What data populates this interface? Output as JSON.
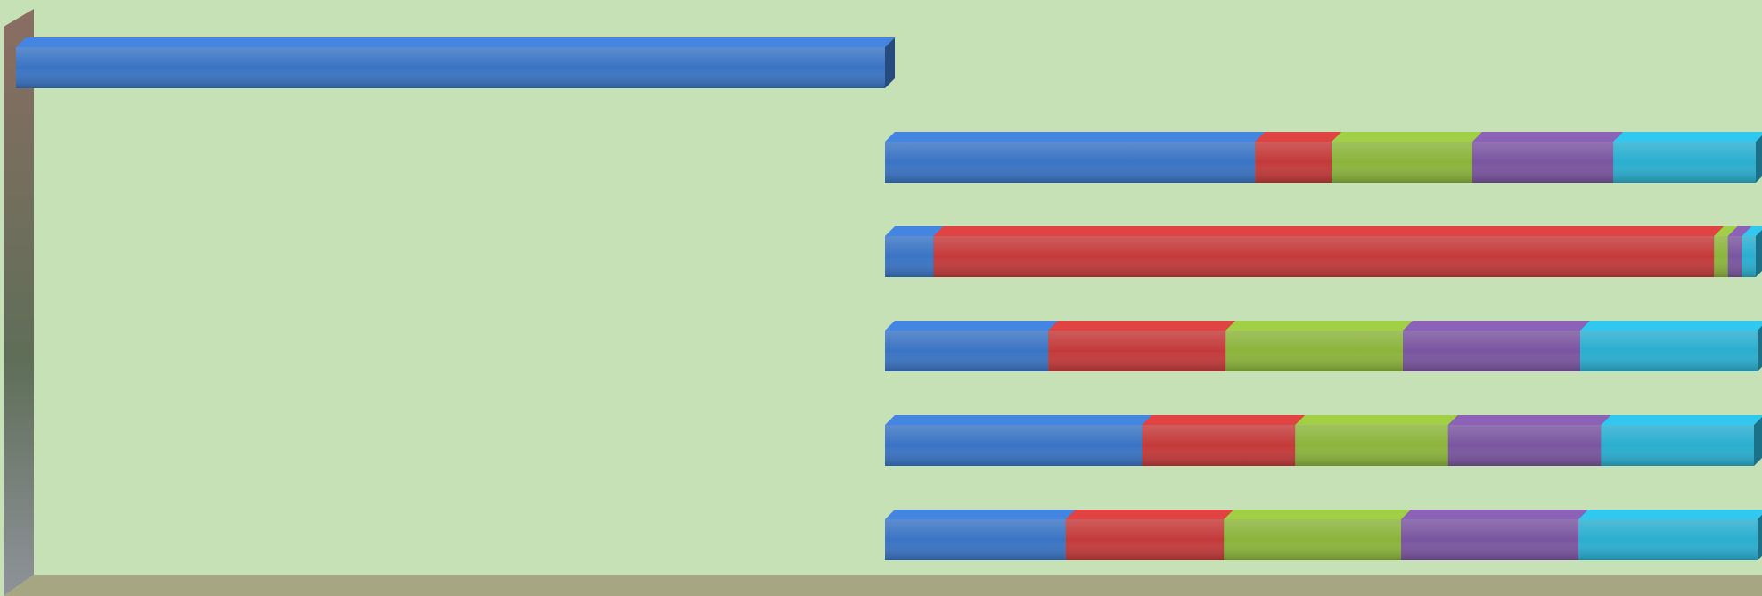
{
  "chart_data": {
    "type": "bar",
    "orientation": "horizontal",
    "stacked": true,
    "categories": [
      null,
      null,
      null,
      null,
      null,
      null
    ],
    "xlim": [
      0,
      100
    ],
    "series": [
      {
        "color": "transparent",
        "values": [
          0,
          50,
          50,
          50,
          50,
          50
        ]
      },
      {
        "color": "#3a74c4",
        "values": [
          50,
          21.3,
          2.8,
          9.4,
          14.8,
          10.4
        ]
      },
      {
        "color": "#c43a3a",
        "values": [
          0,
          4.4,
          44.9,
          10.2,
          8.8,
          9.1
        ]
      },
      {
        "color": "#8cb43c",
        "values": [
          0,
          8.1,
          0.8,
          10.2,
          8.8,
          10.2
        ]
      },
      {
        "color": "#7a55a0",
        "values": [
          0,
          8.1,
          0.8,
          10.2,
          8.8,
          10.2
        ]
      },
      {
        "color": "#2aaed0",
        "values": [
          0,
          8.2,
          0.8,
          10.2,
          8.8,
          10.3
        ]
      }
    ]
  }
}
